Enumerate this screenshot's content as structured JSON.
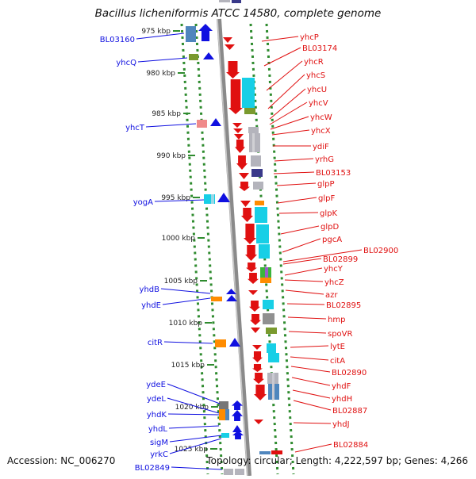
{
  "title": "Bacillus licheniformis ATCC 14580, complete genome",
  "accession": "Accession: NC_006270",
  "topology": "Topology: circular; Length: 4,222,597 bp; Genes: 4,266",
  "colors": {
    "backbone": "#8a8a8a",
    "dots": "#2e8b2e",
    "forward": "#1010e0",
    "reverse": "#e01010",
    "cyan": "#17cfe6",
    "steel": "#4f86bd",
    "olive": "#7a9a2e",
    "pink": "#f08a8a",
    "orange": "#ff8c00",
    "grey": "#b4b4bc",
    "navy": "#3a3a8a",
    "green": "#3cb43c"
  },
  "ticks": [
    "975 kbp",
    "980 kbp",
    "985 kbp",
    "990 kbp",
    "995 kbp",
    "1000 kbp",
    "1005 kbp",
    "1010 kbp",
    "1015 kbp",
    "1020 kbp",
    "1025 kbp"
  ],
  "left_labels": [
    "BL03160",
    "yhcQ",
    "yhcT",
    "yogA",
    "yhdB",
    "yhdE",
    "citR",
    "ydeE",
    "ydeL",
    "yhdK",
    "yhdL",
    "sigM",
    "yrkC",
    "BL02849"
  ],
  "right_labels": [
    "yhcP",
    "BL03174",
    "yhcR",
    "yhcS",
    "yhcU",
    "yhcV",
    "yhcW",
    "yhcX",
    "ydiF",
    "yrhG",
    "BL03153",
    "glpP",
    "glpF",
    "glpK",
    "glpD",
    "pgcA",
    "BL02900",
    "BL02899",
    "yhcY",
    "yhcZ",
    "azr",
    "BL02895",
    "hmp",
    "spoVR",
    "lytE",
    "citA",
    "BL02890",
    "yhdF",
    "yhdH",
    "BL02887",
    "yhdJ",
    "BL02884"
  ]
}
